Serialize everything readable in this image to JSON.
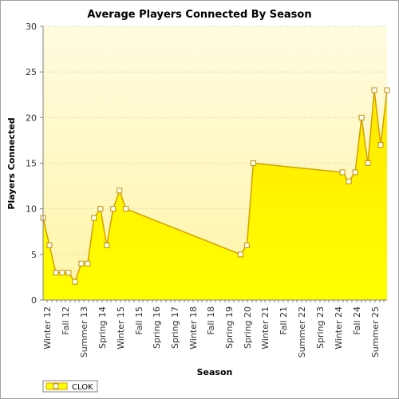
{
  "chart_data": {
    "type": "area",
    "title": "Average Players Connected By Season",
    "xlabel": "Season",
    "ylabel": "Players Connected",
    "ylim": [
      0,
      30
    ],
    "yticks": [
      0,
      5,
      10,
      15,
      20,
      25,
      30
    ],
    "xlim": [
      0,
      53.5
    ],
    "xtick_positions": [
      0,
      4,
      8,
      12,
      16,
      20,
      24,
      28,
      32,
      36,
      40,
      44,
      48,
      52
    ],
    "xtick_labels": [
      "Winter 12",
      "Fall 12",
      "Summer 13",
      "Spring 14",
      "Winter 15",
      "Fall 15",
      "Spring 17",
      "Winter 18",
      "Fall 18",
      "Spring 20",
      "Winter 21",
      "Fall 21",
      "Summer 22",
      "Spring 23"
    ],
    "xtick_labels_2": [
      "Winter 24",
      "Fall 24",
      "Summer 25"
    ],
    "grid": true,
    "legend_placement": "bottom-left",
    "series": [
      {
        "name": "CLOK",
        "color": "#ffff00",
        "edge_color": "#d4a000",
        "points": [
          [
            0,
            9
          ],
          [
            1,
            6
          ],
          [
            2,
            3
          ],
          [
            3,
            3
          ],
          [
            4,
            3
          ],
          [
            5,
            2
          ],
          [
            6,
            4
          ],
          [
            7,
            4
          ],
          [
            8,
            9
          ],
          [
            9,
            10
          ],
          [
            10,
            6
          ],
          [
            11,
            10
          ],
          [
            12,
            12
          ],
          [
            13,
            10
          ],
          [
            31,
            5
          ],
          [
            32,
            6
          ],
          [
            33,
            15
          ],
          [
            47,
            14
          ],
          [
            48,
            13
          ],
          [
            49,
            14
          ],
          [
            50,
            20
          ],
          [
            51,
            15
          ],
          [
            52,
            23
          ],
          [
            53,
            17
          ],
          [
            54,
            23
          ]
        ]
      }
    ]
  },
  "legend": {
    "label": "CLOK"
  }
}
